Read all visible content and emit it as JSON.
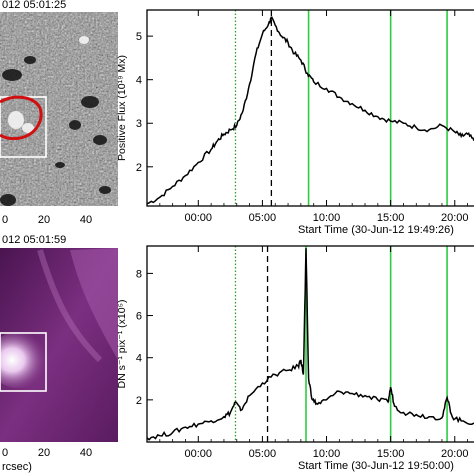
{
  "panels": {
    "top_image": {
      "title": "012  05:01:25",
      "x_ticks": [
        "0",
        "20",
        "40"
      ]
    },
    "bottom_image": {
      "title": "012  05:01:59",
      "x_ticks": [
        "0",
        "20",
        "40"
      ],
      "x_label": "rcsec)"
    }
  },
  "chart_data": [
    {
      "type": "line",
      "ylabel": "Positive Flux (10¹⁹ Mx)",
      "xlabel": "Start Time (30-Jun-12 19:49:26)",
      "x_ticks": [
        "00:00",
        "05:00",
        "10:00",
        "15:00",
        "20:00"
      ],
      "y_ticks": [
        "2",
        "3",
        "4",
        "5"
      ],
      "xlim": [
        -4,
        21.5
      ],
      "ylim": [
        1.1,
        5.6
      ],
      "vlines": {
        "dotted_green": 2.9,
        "dashed_black": 5.7,
        "solid_green": [
          8.6,
          15.0,
          19.4
        ]
      },
      "series": [
        {
          "x": [
            -4,
            -3,
            -2,
            -1,
            0,
            1,
            1.5,
            2,
            2.5,
            3,
            3.5,
            4,
            4.5,
            5,
            5.5,
            5.7,
            6,
            6.5,
            7,
            7.5,
            8,
            8.5,
            9,
            10,
            11,
            12,
            13,
            14,
            15,
            16,
            17,
            18,
            19,
            20,
            20.5,
            21,
            21.5
          ],
          "y": [
            1.15,
            1.3,
            1.55,
            1.8,
            2.1,
            2.4,
            2.6,
            2.75,
            2.85,
            2.95,
            3.3,
            3.9,
            4.6,
            5.05,
            5.3,
            5.4,
            5.25,
            5.0,
            4.85,
            4.6,
            4.45,
            4.15,
            3.95,
            3.8,
            3.6,
            3.45,
            3.3,
            3.15,
            3.05,
            3.0,
            2.9,
            2.85,
            2.95,
            2.8,
            2.7,
            2.75,
            2.6
          ]
        }
      ]
    },
    {
      "type": "line",
      "ylabel": "DN s⁻¹ pix⁻¹ (x10⁵)",
      "xlabel": "Start Time (30-Jun-12 19:50:00)",
      "x_ticks": [
        "00:00",
        "05:00",
        "10:00",
        "15:00",
        "20:00"
      ],
      "y_ticks": [
        "2",
        "4",
        "6",
        "8"
      ],
      "xlim": [
        -4,
        21.5
      ],
      "ylim": [
        0,
        9.3
      ],
      "vlines": {
        "dotted_green": 2.9,
        "dashed_black": 5.4,
        "solid_green": [
          8.4,
          15.0,
          19.4
        ]
      },
      "series": [
        {
          "x": [
            -4,
            -3,
            -2,
            -1,
            0,
            1,
            2,
            2.5,
            2.9,
            3.3,
            4,
            5,
            6,
            7,
            7.8,
            8.0,
            8.2,
            8.4,
            8.6,
            8.9,
            9.3,
            10,
            11,
            12,
            13,
            14,
            14.8,
            15.0,
            15.3,
            16,
            17,
            18,
            19,
            19.4,
            19.8,
            20.5,
            21.5
          ],
          "y": [
            0.2,
            0.3,
            0.45,
            0.7,
            0.85,
            1.0,
            1.2,
            1.4,
            1.9,
            1.5,
            2.2,
            2.8,
            3.2,
            3.4,
            3.6,
            3.9,
            3.2,
            9.2,
            3.0,
            2.0,
            1.8,
            2.0,
            2.4,
            2.3,
            2.2,
            2.0,
            1.9,
            2.6,
            1.7,
            1.4,
            1.3,
            1.2,
            1.15,
            2.1,
            1.2,
            1.0,
            0.9
          ]
        }
      ]
    }
  ]
}
